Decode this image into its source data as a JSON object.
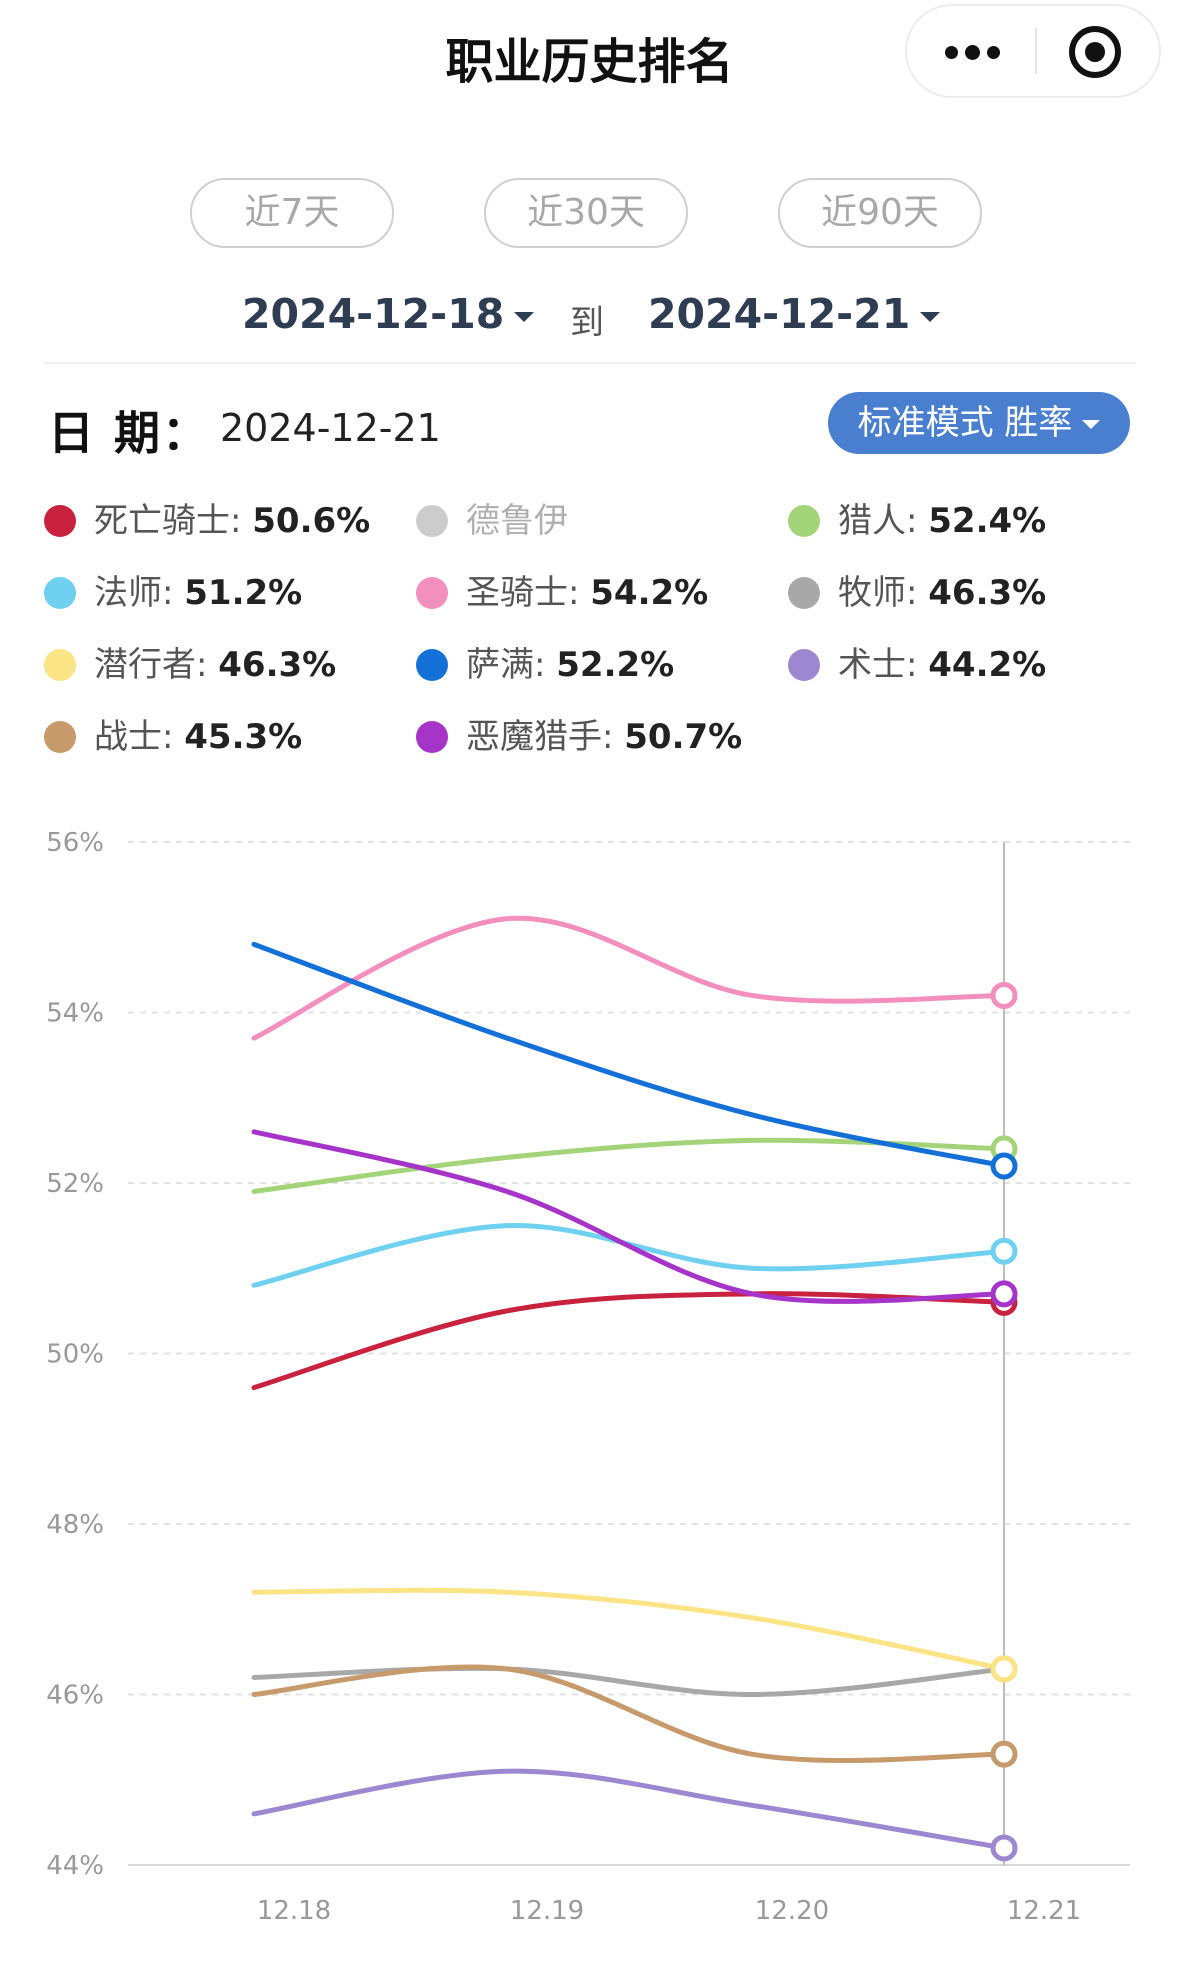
{
  "nav": {
    "title": "职业历史排名"
  },
  "range_buttons": [
    "近7天",
    "近30天",
    "近90天"
  ],
  "date_range": {
    "start": "2024-12-18",
    "to_label": "到",
    "end": "2024-12-21"
  },
  "date_label": "日  期：",
  "current_date": "2024-12-21",
  "mode_button": "标准模式 胜率",
  "legend": [
    {
      "name": "死亡骑士",
      "value": "50.6%",
      "color": "#c8223e"
    },
    {
      "name": "德鲁伊",
      "value": "",
      "color": "#cccccc",
      "disabled": true
    },
    {
      "name": "猎人",
      "value": "52.4%",
      "color": "#a3d47a"
    },
    {
      "name": "法师",
      "value": "51.2%",
      "color": "#6fd0f0"
    },
    {
      "name": "圣骑士",
      "value": "54.2%",
      "color": "#f28fbc"
    },
    {
      "name": "牧师",
      "value": "46.3%",
      "color": "#a8a8a8"
    },
    {
      "name": "潜行者",
      "value": "46.3%",
      "color": "#fbe486"
    },
    {
      "name": "萨满",
      "value": "52.2%",
      "color": "#1470d6"
    },
    {
      "name": "术士",
      "value": "44.2%",
      "color": "#9b88d0"
    },
    {
      "name": "战士",
      "value": "45.3%",
      "color": "#c79a6b"
    },
    {
      "name": "恶魔猎手",
      "value": "50.7%",
      "color": "#a634c8"
    }
  ],
  "chart_data": {
    "type": "line",
    "x": [
      "12.18",
      "12.19",
      "12.20",
      "12.21"
    ],
    "y_ticks": [
      "56%",
      "54%",
      "52%",
      "50%",
      "48%",
      "46%",
      "44%"
    ],
    "ylim": [
      44,
      56
    ],
    "grid": true,
    "highlighted_x": "12.21",
    "series": [
      {
        "name": "死亡骑士",
        "color": "#c8223e",
        "values": [
          49.6,
          50.5,
          50.7,
          50.6
        ]
      },
      {
        "name": "猎人",
        "color": "#a3d47a",
        "values": [
          51.9,
          52.3,
          52.5,
          52.4
        ]
      },
      {
        "name": "法师",
        "color": "#6fd0f0",
        "values": [
          50.8,
          51.5,
          51.0,
          51.2
        ]
      },
      {
        "name": "圣骑士",
        "color": "#f28fbc",
        "values": [
          53.7,
          55.1,
          54.2,
          54.2
        ]
      },
      {
        "name": "牧师",
        "color": "#a8a8a8",
        "values": [
          46.2,
          46.3,
          46.0,
          46.3
        ]
      },
      {
        "name": "潜行者",
        "color": "#fbe486",
        "values": [
          47.2,
          47.2,
          46.9,
          46.3
        ]
      },
      {
        "name": "萨满",
        "color": "#1470d6",
        "values": [
          54.8,
          53.7,
          52.8,
          52.2
        ]
      },
      {
        "name": "术士",
        "color": "#9b88d0",
        "values": [
          44.6,
          45.1,
          44.7,
          44.2
        ]
      },
      {
        "name": "战士",
        "color": "#c79a6b",
        "values": [
          46.0,
          46.3,
          45.3,
          45.3
        ]
      },
      {
        "name": "恶魔猎手",
        "color": "#a634c8",
        "values": [
          52.6,
          51.9,
          50.7,
          50.7
        ]
      }
    ]
  }
}
